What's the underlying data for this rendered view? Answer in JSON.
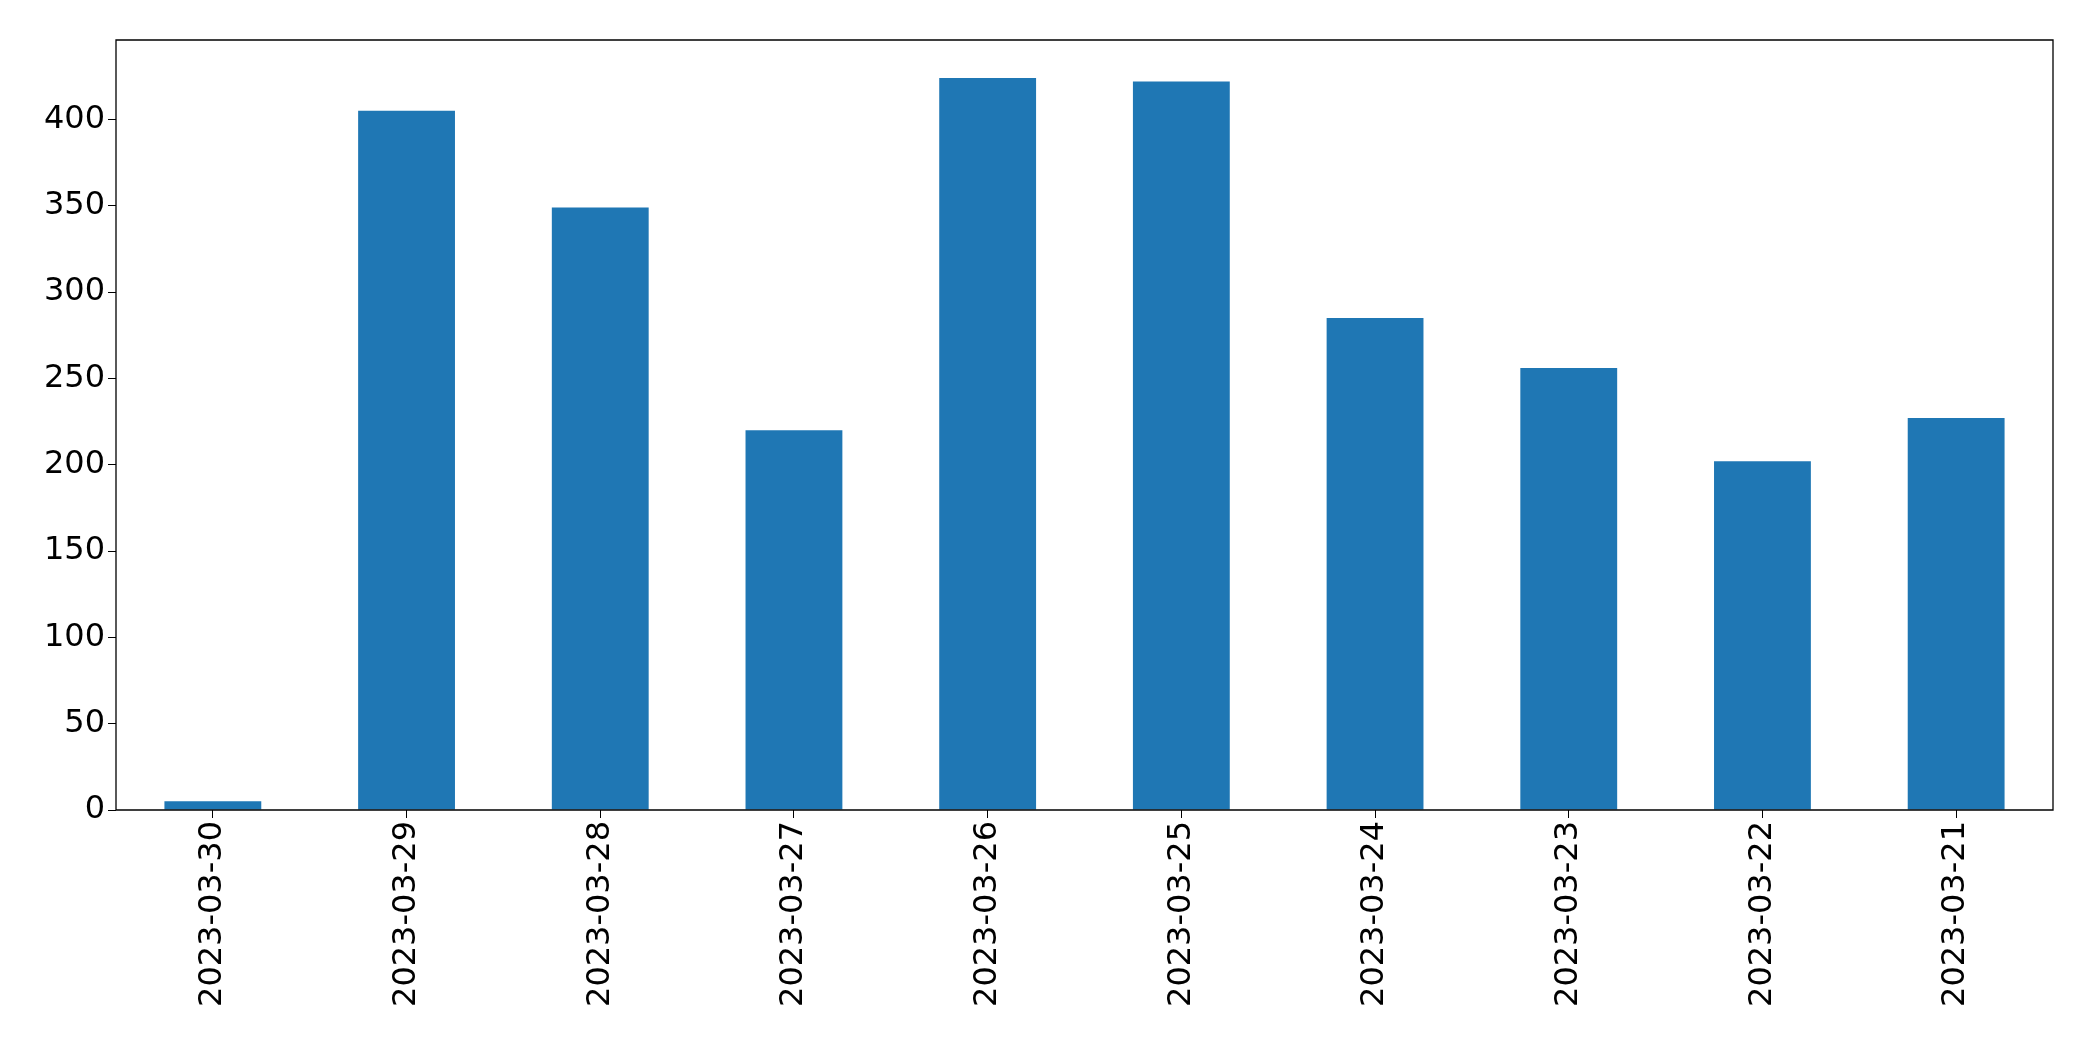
{
  "chart_data": {
    "type": "bar",
    "categories": [
      "2023-03-30",
      "2023-03-29",
      "2023-03-28",
      "2023-03-27",
      "2023-03-26",
      "2023-03-25",
      "2023-03-24",
      "2023-03-23",
      "2023-03-22",
      "2023-03-21"
    ],
    "values": [
      5,
      405,
      349,
      220,
      424,
      422,
      285,
      256,
      202,
      227
    ],
    "color": "#1f77b4",
    "ylim": [
      0,
      446
    ],
    "yticks": [
      0,
      50,
      100,
      150,
      200,
      250,
      300,
      350,
      400
    ],
    "grid": false,
    "legend": false
  }
}
